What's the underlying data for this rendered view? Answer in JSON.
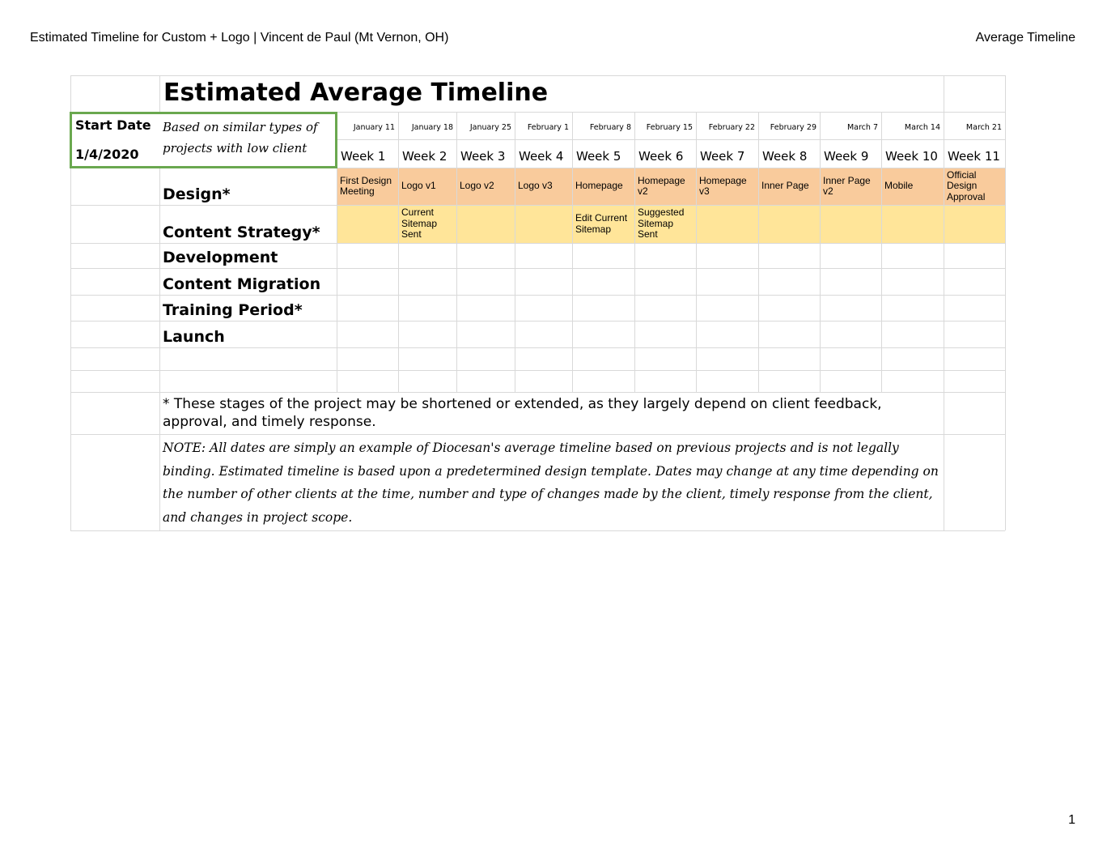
{
  "header": {
    "left": "Estimated Timeline for Custom + Logo | Vincent de Paul (Mt Vernon, OH)",
    "right": "Average Timeline"
  },
  "title": "Estimated Average Timeline",
  "start_date": {
    "label": "Start Date",
    "value": "1/4/2020"
  },
  "start_note": "Based on similar types of projects with low client",
  "dates": [
    "January 11",
    "January 18",
    "January 25",
    "February 1",
    "February 8",
    "February 15",
    "February 22",
    "February 29",
    "March 7",
    "March 14",
    "March 21"
  ],
  "weeks": [
    "Week 1",
    "Week 2",
    "Week 3",
    "Week 4",
    "Week 5",
    "Week 6",
    "Week 7",
    "Week 8",
    "Week 9",
    "Week 10",
    "Week 11"
  ],
  "rows": [
    {
      "label": "Design*",
      "cells": [
        "First Design Meeting",
        "Logo v1",
        "Logo v2",
        "Logo v3",
        "Homepage",
        "Homepage v2",
        "Homepage v3",
        "Inner Page",
        "Inner Page v2",
        "Mobile",
        "Official Design Approval"
      ]
    },
    {
      "label": "Content Strategy*",
      "cells": [
        null,
        "Current Sitemap Sent",
        null,
        null,
        "Edit Current Sitemap",
        "Suggested Sitemap Sent",
        null,
        null,
        null,
        null,
        null
      ]
    },
    {
      "label": "Development"
    },
    {
      "label": "Content Migration"
    },
    {
      "label": "Training Period*"
    },
    {
      "label": "Launch"
    }
  ],
  "footnote": "* These stages of the project may be shortened or extended, as they largely depend on client feedback, approval, and timely response.",
  "note": "NOTE: All dates are simply an example of Diocesan's average timeline based on previous projects and is not legally binding. Estimated timeline is based upon a predetermined design template. Dates may change at any time depending on the number of other clients at the time, number and type of changes made by the client, timely response from the client, and changes in project scope.",
  "page_number": "1"
}
